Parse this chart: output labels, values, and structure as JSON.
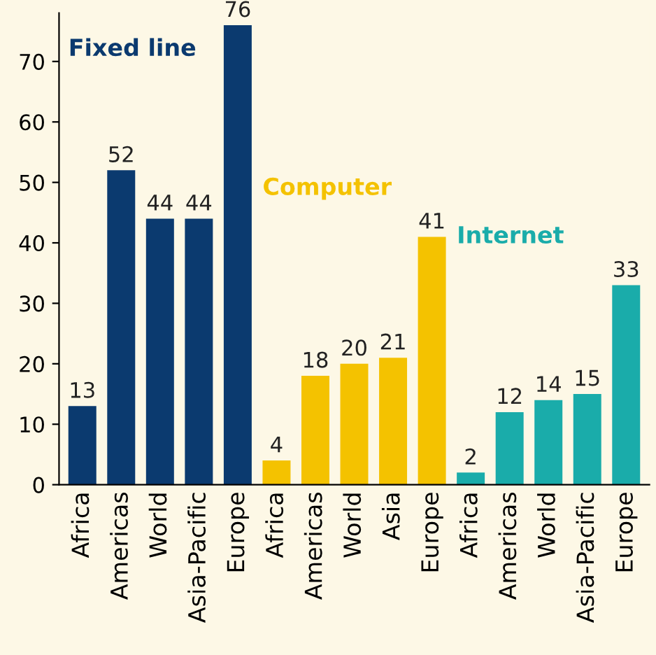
{
  "chart_data": {
    "type": "bar",
    "categories": [
      "Africa",
      "Americas",
      "World",
      "Asia-Pacific",
      "Europe",
      "Africa",
      "Americas",
      "World",
      "Asia",
      "Europe",
      "Africa",
      "Americas",
      "World",
      "Asia-Pacific",
      "Europe"
    ],
    "series": [
      {
        "name": "Fixed line",
        "color": "#0b3a6f",
        "values": [
          13,
          52,
          44,
          44,
          76,
          null,
          null,
          null,
          null,
          null,
          null,
          null,
          null,
          null,
          null
        ]
      },
      {
        "name": "Computer",
        "color": "#f4c200",
        "values": [
          null,
          null,
          null,
          null,
          null,
          4,
          18,
          20,
          21,
          41,
          null,
          null,
          null,
          null,
          null
        ]
      },
      {
        "name": "Internet",
        "color": "#1aacaa",
        "values": [
          null,
          null,
          null,
          null,
          null,
          null,
          null,
          null,
          null,
          null,
          2,
          12,
          14,
          15,
          33
        ]
      }
    ],
    "ylim": [
      0,
      78
    ],
    "yticks": [
      0,
      10,
      20,
      30,
      40,
      50,
      60,
      70
    ],
    "data_labels": true,
    "grid": false,
    "legend": false
  }
}
